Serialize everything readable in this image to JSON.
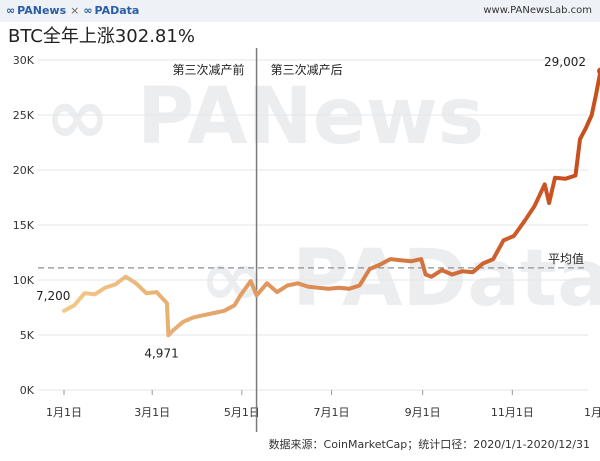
{
  "header": {
    "brand_1": "PANews",
    "brand_sep": "×",
    "brand_2": "PAData",
    "site": "www.PANewsLab.com"
  },
  "chart_data": {
    "type": "line",
    "title": "BTC全年上涨302.81%",
    "xlabel": "",
    "ylabel": "",
    "x_ticks": [
      "1月1日",
      "3月1日",
      "5月1日",
      "7月1日",
      "9月1日",
      "11月1日",
      "1月1日"
    ],
    "y_ticks": [
      "0K",
      "5K",
      "10K",
      "15K",
      "20K",
      "25K",
      "30K"
    ],
    "ylim": [
      0,
      30000
    ],
    "xlim": [
      "2020-01-01",
      "2021-01-01"
    ],
    "grid": "horizontal",
    "colors": {
      "line_start": "#f2c98a",
      "line_end": "#c8501e",
      "average": "#8b9097",
      "divider": "#7a7a7a"
    },
    "series": [
      {
        "x": [
          "2020-01-01",
          "2020-01-08",
          "2020-01-15",
          "2020-01-22",
          "2020-01-29",
          "2020-02-05",
          "2020-02-12",
          "2020-02-19",
          "2020-02-26",
          "2020-03-04",
          "2020-03-11",
          "2020-03-12",
          "2020-03-15",
          "2020-03-22",
          "2020-03-29",
          "2020-04-05",
          "2020-04-12",
          "2020-04-19",
          "2020-04-26",
          "2020-04-30",
          "2020-05-07",
          "2020-05-11",
          "2020-05-18",
          "2020-05-25",
          "2020-06-01",
          "2020-06-08",
          "2020-06-15",
          "2020-06-22",
          "2020-06-29",
          "2020-07-06",
          "2020-07-13",
          "2020-07-20",
          "2020-07-27",
          "2020-08-03",
          "2020-08-10",
          "2020-08-17",
          "2020-08-24",
          "2020-08-31",
          "2020-09-03",
          "2020-09-07",
          "2020-09-14",
          "2020-09-21",
          "2020-09-28",
          "2020-10-05",
          "2020-10-12",
          "2020-10-19",
          "2020-10-26",
          "2020-11-02",
          "2020-11-09",
          "2020-11-16",
          "2020-11-23",
          "2020-11-26",
          "2020-11-30",
          "2020-12-07",
          "2020-12-14",
          "2020-12-17",
          "2020-12-21",
          "2020-12-25",
          "2020-12-28",
          "2020-12-31"
        ],
        "values": [
          7200,
          7700,
          8800,
          8700,
          9300,
          9600,
          10300,
          9700,
          8800,
          8900,
          7900,
          4971,
          5400,
          6200,
          6600,
          6800,
          7000,
          7200,
          7700,
          8600,
          9900,
          8600,
          9700,
          8900,
          9500,
          9700,
          9400,
          9300,
          9200,
          9300,
          9200,
          9500,
          11000,
          11400,
          11900,
          11800,
          11700,
          11900,
          10500,
          10300,
          10900,
          10500,
          10800,
          10700,
          11500,
          11900,
          13600,
          14000,
          15300,
          16700,
          18700,
          17000,
          19300,
          19200,
          19500,
          22800,
          23800,
          25000,
          26900,
          29002
        ]
      }
    ],
    "annotations": {
      "before_halving": "第三次减产前",
      "after_halving": "第三次减产后",
      "divider_date": "2020-05-11",
      "average_label": "平均值",
      "average_value": 11100,
      "start_label": "7,200",
      "low_label": "4,971",
      "end_label": "29,002"
    },
    "watermark": [
      "PANews",
      "PAData"
    ]
  },
  "footer": {
    "source": "数据来源：CoinMarketCap；统计口径：2020/1/1-2020/12/31"
  }
}
